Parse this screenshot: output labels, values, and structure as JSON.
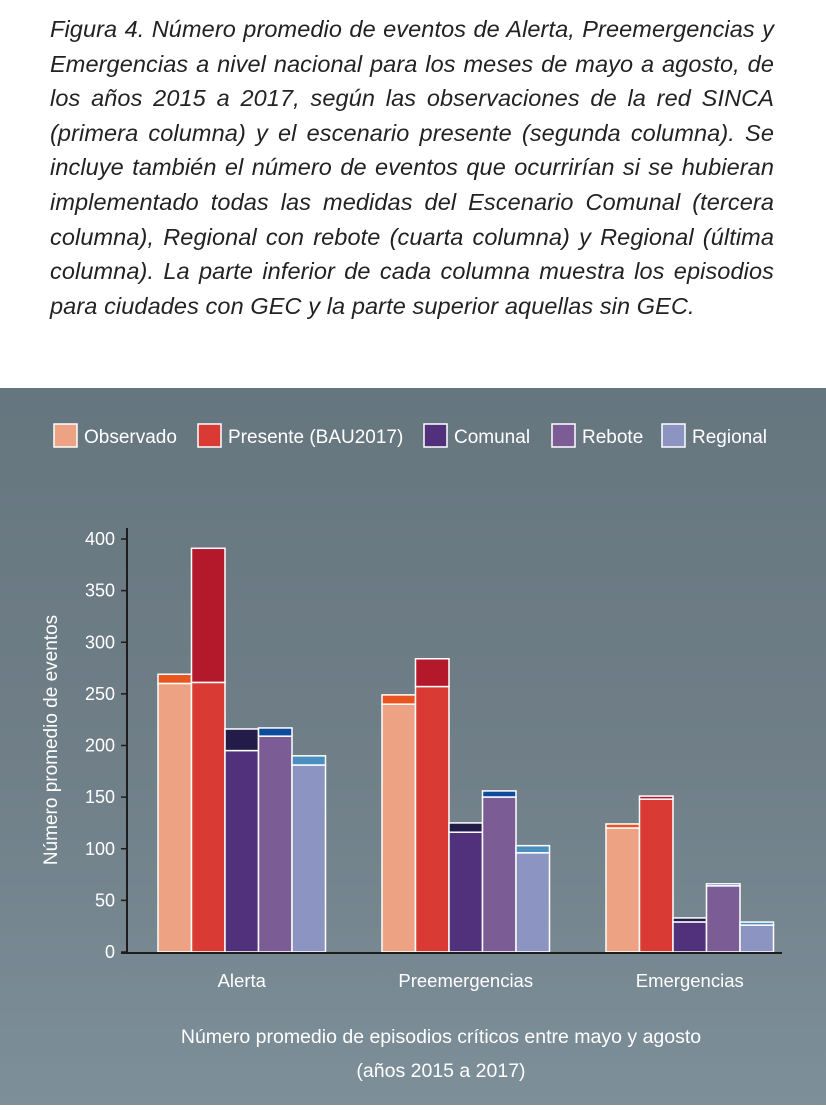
{
  "caption": {
    "label": "Figura 4.",
    "text": "Número promedio de eventos de Alerta, Preemergencias y Emergencias a nivel nacional para los meses de mayo a agosto, de los años 2015 a 2017, según las observaciones de la red SINCA (primera columna) y el escenario presente (segunda columna). Se incluye también el número de eventos que ocurrirían si se hubieran implementado todas las medidas del Escenario Comunal (tercera columna), Regional con rebote (cuarta columna) y Regional (última columna). La parte inferior de cada columna muestra los episodios para ciudades con GEC y la parte superior aquellas sin GEC."
  },
  "chart_data": {
    "type": "bar",
    "stacked": true,
    "categories": [
      "Alerta",
      "Preemergencias",
      "Emergencias"
    ],
    "ylabel": "Número promedio de eventos",
    "xlabel": [
      "Número promedio de episodios críticos entre mayo y agosto",
      "(años 2015 a 2017)"
    ],
    "ylim": [
      0,
      400
    ],
    "yticks": [
      0,
      50,
      100,
      150,
      200,
      250,
      300,
      350,
      400
    ],
    "legend_position": "top",
    "series": [
      {
        "name": "Observado",
        "color": "#eda283",
        "color_top": "#e9541f",
        "con_gec": [
          260,
          240,
          120
        ],
        "total": [
          269,
          249,
          124
        ]
      },
      {
        "name": "Presente (BAU2017)",
        "color": "#d93a34",
        "color_top": "#b4192b",
        "con_gec": [
          261,
          257,
          148
        ],
        "total": [
          391,
          284,
          151
        ]
      },
      {
        "name": "Comunal",
        "color": "#52317c",
        "color_top": "#241c48",
        "con_gec": [
          195,
          116,
          29
        ],
        "total": [
          216,
          125,
          33
        ]
      },
      {
        "name": "Rebote",
        "color": "#7c5c94",
        "color_top": "#0d4c9b",
        "con_gec": [
          209,
          150,
          64
        ],
        "total": [
          217,
          156,
          66
        ]
      },
      {
        "name": "Regional",
        "color": "#8c95c2",
        "color_top": "#4a8fbd",
        "con_gec": [
          181,
          96,
          26
        ],
        "total": [
          190,
          103,
          29
        ]
      }
    ]
  }
}
